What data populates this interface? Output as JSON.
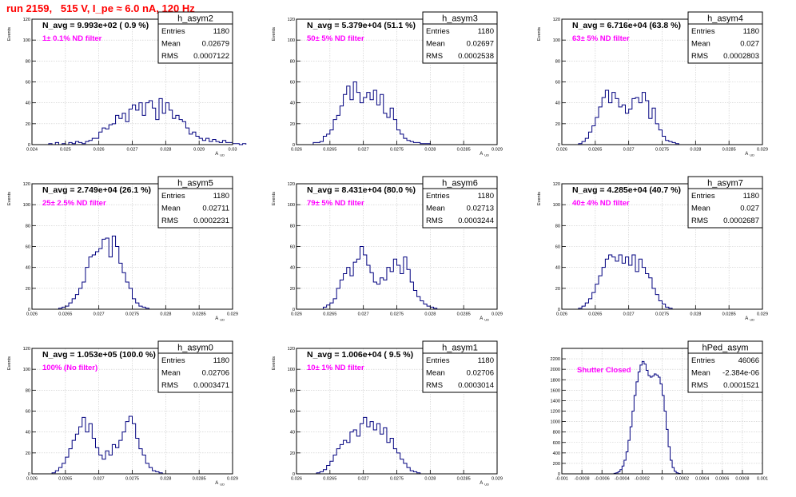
{
  "page_title": "run 2159,   515 V, I_pe ≈ 6.0 nA, 120 Hz",
  "colors": {
    "title": "#ff0000",
    "histogram_line": "#00007f",
    "annotation": "#ff00ff",
    "grid": "#c8c8c8"
  },
  "chart_data": [
    {
      "type": "histogram",
      "name": "h_asym2",
      "ylabel": "Events",
      "xlabel": "A_UD",
      "xlabel_main": "A",
      "xlabel_sub": "UD",
      "xlim": [
        0.024,
        0.03
      ],
      "ylim": [
        0,
        120
      ],
      "x_ticks": [
        "0.024",
        "0.025",
        "0.026",
        "0.027",
        "0.028",
        "0.029",
        "0.03"
      ],
      "y_ticks": [
        "0",
        "20",
        "40",
        "60",
        "80",
        "100",
        "120"
      ],
      "grid": true,
      "n_avg_text": "N_avg = 9.993e+02 ( 0.9 %)",
      "filter_text": "1± 0.1% ND filter",
      "stats": [
        {
          "label": "Entries",
          "value": "1180"
        },
        {
          "label": "Mean",
          "value": "0.02679"
        },
        {
          "label": "RMS",
          "value": "0.0007122"
        }
      ],
      "bins": {
        "start": 0.0245,
        "width": 0.0001,
        "counts": [
          1,
          0,
          2,
          0,
          1,
          0,
          2,
          1,
          3,
          2,
          1,
          3,
          4,
          6,
          6,
          12,
          16,
          15,
          19,
          20,
          28,
          25,
          30,
          22,
          34,
          38,
          33,
          40,
          28,
          40,
          42,
          35,
          24,
          44,
          30,
          40,
          33,
          25,
          28,
          24,
          22,
          16,
          10,
          12,
          8,
          6,
          4,
          6,
          3,
          5,
          3,
          2,
          4,
          2,
          2,
          1,
          1,
          0,
          1
        ]
      }
    },
    {
      "type": "histogram",
      "name": "h_asym3",
      "ylabel": "Events",
      "xlabel": "A_UD",
      "xlabel_main": "A",
      "xlabel_sub": "UD",
      "xlim": [
        0.026,
        0.029
      ],
      "ylim": [
        0,
        120
      ],
      "x_ticks": [
        "0.026",
        "0.0265",
        "0.027",
        "0.0275",
        "0.028",
        "0.0285",
        "0.029"
      ],
      "y_ticks": [
        "0",
        "20",
        "40",
        "60",
        "80",
        "100",
        "120"
      ],
      "grid": true,
      "n_avg_text": "N_avg = 5.379e+04 (51.1 %)",
      "filter_text": "50± 5% ND filter",
      "stats": [
        {
          "label": "Entries",
          "value": "1180"
        },
        {
          "label": "Mean",
          "value": "0.02697"
        },
        {
          "label": "RMS",
          "value": "0.0002538"
        }
      ],
      "bins": {
        "start": 0.02625,
        "width": 5e-05,
        "counts": [
          2,
          2,
          3,
          8,
          10,
          14,
          24,
          28,
          37,
          48,
          56,
          43,
          60,
          50,
          40,
          45,
          50,
          43,
          52,
          38,
          48,
          30,
          26,
          35,
          24,
          14,
          10,
          6,
          4,
          3,
          2,
          2,
          1,
          1,
          1
        ]
      }
    },
    {
      "type": "histogram",
      "name": "h_asym4",
      "ylabel": "Events",
      "xlabel": "A_UD",
      "xlabel_main": "A",
      "xlabel_sub": "UD",
      "xlim": [
        0.026,
        0.029
      ],
      "ylim": [
        0,
        120
      ],
      "x_ticks": [
        "0.026",
        "0.0265",
        "0.027",
        "0.0275",
        "0.028",
        "0.0285",
        "0.029"
      ],
      "y_ticks": [
        "0",
        "20",
        "40",
        "60",
        "80",
        "100",
        "120"
      ],
      "grid": true,
      "n_avg_text": "N_avg = 6.716e+04 (63.8 %)",
      "filter_text": "63± 5% ND filter",
      "stats": [
        {
          "label": "Entries",
          "value": "1180"
        },
        {
          "label": "Mean",
          "value": "0.027"
        },
        {
          "label": "RMS",
          "value": "0.0002803"
        }
      ],
      "bins": {
        "start": 0.02625,
        "width": 5e-05,
        "counts": [
          1,
          3,
          6,
          12,
          18,
          26,
          36,
          45,
          52,
          40,
          50,
          44,
          36,
          38,
          30,
          34,
          44,
          45,
          40,
          50,
          42,
          25,
          35,
          20,
          14,
          8,
          4,
          3,
          2,
          1
        ]
      }
    },
    {
      "type": "histogram",
      "name": "h_asym5",
      "ylabel": "Events",
      "xlabel": "A_UD",
      "xlabel_main": "A",
      "xlabel_sub": "UD",
      "xlim": [
        0.026,
        0.029
      ],
      "ylim": [
        0,
        120
      ],
      "x_ticks": [
        "0.026",
        "0.0265",
        "0.027",
        "0.0275",
        "0.028",
        "0.0285",
        "0.029"
      ],
      "y_ticks": [
        "0",
        "20",
        "40",
        "60",
        "80",
        "100",
        "120"
      ],
      "grid": true,
      "n_avg_text": "N_avg = 2.749e+04 (26.1 %)",
      "filter_text": "25± 2.5% ND filter",
      "stats": [
        {
          "label": "Entries",
          "value": "1180"
        },
        {
          "label": "Mean",
          "value": "0.02711"
        },
        {
          "label": "RMS",
          "value": "0.0002231"
        }
      ],
      "bins": {
        "start": 0.0264,
        "width": 5e-05,
        "counts": [
          1,
          2,
          3,
          6,
          10,
          14,
          20,
          26,
          40,
          50,
          52,
          55,
          58,
          67,
          68,
          50,
          70,
          60,
          44,
          35,
          26,
          20,
          10,
          6,
          3,
          2,
          1
        ]
      }
    },
    {
      "type": "histogram",
      "name": "h_asym6",
      "ylabel": "Events",
      "xlabel": "A_UD",
      "xlabel_main": "A",
      "xlabel_sub": "UD",
      "xlim": [
        0.026,
        0.029
      ],
      "ylim": [
        0,
        120
      ],
      "x_ticks": [
        "0.026",
        "0.0265",
        "0.027",
        "0.0275",
        "0.028",
        "0.0285",
        "0.029"
      ],
      "y_ticks": [
        "0",
        "20",
        "40",
        "60",
        "80",
        "100",
        "120"
      ],
      "grid": true,
      "n_avg_text": "N_avg = 8.431e+04 (80.0 %)",
      "filter_text": "79± 5% ND filter",
      "stats": [
        {
          "label": "Entries",
          "value": "1180"
        },
        {
          "label": "Mean",
          "value": "0.02713"
        },
        {
          "label": "RMS",
          "value": "0.0003244"
        }
      ],
      "bins": {
        "start": 0.0264,
        "width": 5e-05,
        "counts": [
          2,
          4,
          6,
          10,
          20,
          28,
          34,
          40,
          32,
          45,
          48,
          60,
          52,
          42,
          35,
          26,
          24,
          30,
          28,
          40,
          36,
          48,
          42,
          34,
          50,
          38,
          26,
          18,
          12,
          8,
          5,
          3,
          2,
          1
        ]
      }
    },
    {
      "type": "histogram",
      "name": "h_asym7",
      "ylabel": "Events",
      "xlabel": "A_UD",
      "xlabel_main": "A",
      "xlabel_sub": "UD",
      "xlim": [
        0.026,
        0.029
      ],
      "ylim": [
        0,
        120
      ],
      "x_ticks": [
        "0.026",
        "0.0265",
        "0.027",
        "0.0275",
        "0.028",
        "0.0285",
        "0.029"
      ],
      "y_ticks": [
        "0",
        "20",
        "40",
        "60",
        "80",
        "100",
        "120"
      ],
      "grid": true,
      "n_avg_text": "N_avg = 4.285e+04 (40.7 %)",
      "filter_text": "40± 4% ND filter",
      "stats": [
        {
          "label": "Entries",
          "value": "1180"
        },
        {
          "label": "Mean",
          "value": "0.027"
        },
        {
          "label": "RMS",
          "value": "0.0002687"
        }
      ],
      "bins": {
        "start": 0.02625,
        "width": 5e-05,
        "counts": [
          1,
          3,
          6,
          10,
          16,
          24,
          32,
          40,
          48,
          52,
          50,
          46,
          52,
          44,
          50,
          42,
          52,
          36,
          48,
          40,
          34,
          30,
          20,
          14,
          8,
          5,
          2,
          1
        ]
      }
    },
    {
      "type": "histogram",
      "name": "h_asym0",
      "ylabel": "Events",
      "xlabel": "A_UD",
      "xlabel_main": "A",
      "xlabel_sub": "UD",
      "xlim": [
        0.026,
        0.029
      ],
      "ylim": [
        0,
        120
      ],
      "x_ticks": [
        "0.026",
        "0.0265",
        "0.027",
        "0.0275",
        "0.028",
        "0.0285",
        "0.029"
      ],
      "y_ticks": [
        "0",
        "20",
        "40",
        "60",
        "80",
        "100",
        "120"
      ],
      "grid": true,
      "n_avg_text": "N_avg = 1.053e+05 (100.0 %)",
      "filter_text": "100% (No filter)",
      "stats": [
        {
          "label": "Entries",
          "value": "1180"
        },
        {
          "label": "Mean",
          "value": "0.02706"
        },
        {
          "label": "RMS",
          "value": "0.0003471"
        }
      ],
      "bins": {
        "start": 0.0263,
        "width": 5e-05,
        "counts": [
          1,
          3,
          6,
          10,
          16,
          24,
          32,
          38,
          45,
          54,
          40,
          48,
          34,
          25,
          18,
          14,
          22,
          18,
          28,
          25,
          32,
          40,
          50,
          55,
          48,
          34,
          24,
          18,
          10,
          6,
          3,
          2,
          1
        ]
      }
    },
    {
      "type": "histogram",
      "name": "h_asym1",
      "ylabel": "Events",
      "xlabel": "A_UD",
      "xlabel_main": "A",
      "xlabel_sub": "UD",
      "xlim": [
        0.026,
        0.029
      ],
      "ylim": [
        0,
        120
      ],
      "x_ticks": [
        "0.026",
        "0.0265",
        "0.027",
        "0.0275",
        "0.028",
        "0.0285",
        "0.029"
      ],
      "y_ticks": [
        "0",
        "20",
        "40",
        "60",
        "80",
        "100",
        "120"
      ],
      "grid": true,
      "n_avg_text": "N_avg = 1.006e+04 ( 9.5 %)",
      "filter_text": "10± 1% ND filter",
      "stats": [
        {
          "label": "Entries",
          "value": "1180"
        },
        {
          "label": "Mean",
          "value": "0.02706"
        },
        {
          "label": "RMS",
          "value": "0.0003014"
        }
      ],
      "bins": {
        "start": 0.0263,
        "width": 5e-05,
        "counts": [
          1,
          2,
          4,
          8,
          12,
          18,
          24,
          28,
          32,
          30,
          40,
          42,
          36,
          48,
          54,
          45,
          50,
          42,
          48,
          38,
          44,
          30,
          34,
          24,
          20,
          14,
          10,
          6,
          3,
          2,
          1
        ]
      }
    },
    {
      "type": "histogram",
      "name": "hPed_asym",
      "ylabel": "",
      "xlabel": "",
      "xlabel_main": "",
      "xlabel_sub": "",
      "xlim": [
        -0.001,
        0.001
      ],
      "ylim": [
        0,
        2400
      ],
      "x_ticks": [
        "-0.001",
        "-0.0008",
        "-0.0006",
        "-0.0004",
        "-0.0002",
        "0",
        "0.0002",
        "0.0004",
        "0.0006",
        "0.0008",
        "0.001"
      ],
      "y_ticks": [
        "0",
        "200",
        "400",
        "600",
        "800",
        "1000",
        "1200",
        "1400",
        "1600",
        "1800",
        "2000",
        "2200"
      ],
      "grid": true,
      "n_avg_text": "",
      "filter_text": "Shutter Closed",
      "stats": [
        {
          "label": "Entries",
          "value": "46066"
        },
        {
          "label": "Mean",
          "value": "-2.384e-06"
        },
        {
          "label": "RMS",
          "value": "0.0001521"
        }
      ],
      "bins": {
        "start": -0.00048,
        "width": 2e-05,
        "counts": [
          10,
          20,
          40,
          80,
          150,
          260,
          420,
          640,
          900,
          1200,
          1500,
          1760,
          1950,
          2080,
          2150,
          2100,
          1980,
          1880,
          1850,
          1870,
          1910,
          1890,
          1850,
          1720,
          1500,
          1200,
          850,
          520,
          260,
          120,
          50,
          20,
          8
        ]
      }
    }
  ]
}
